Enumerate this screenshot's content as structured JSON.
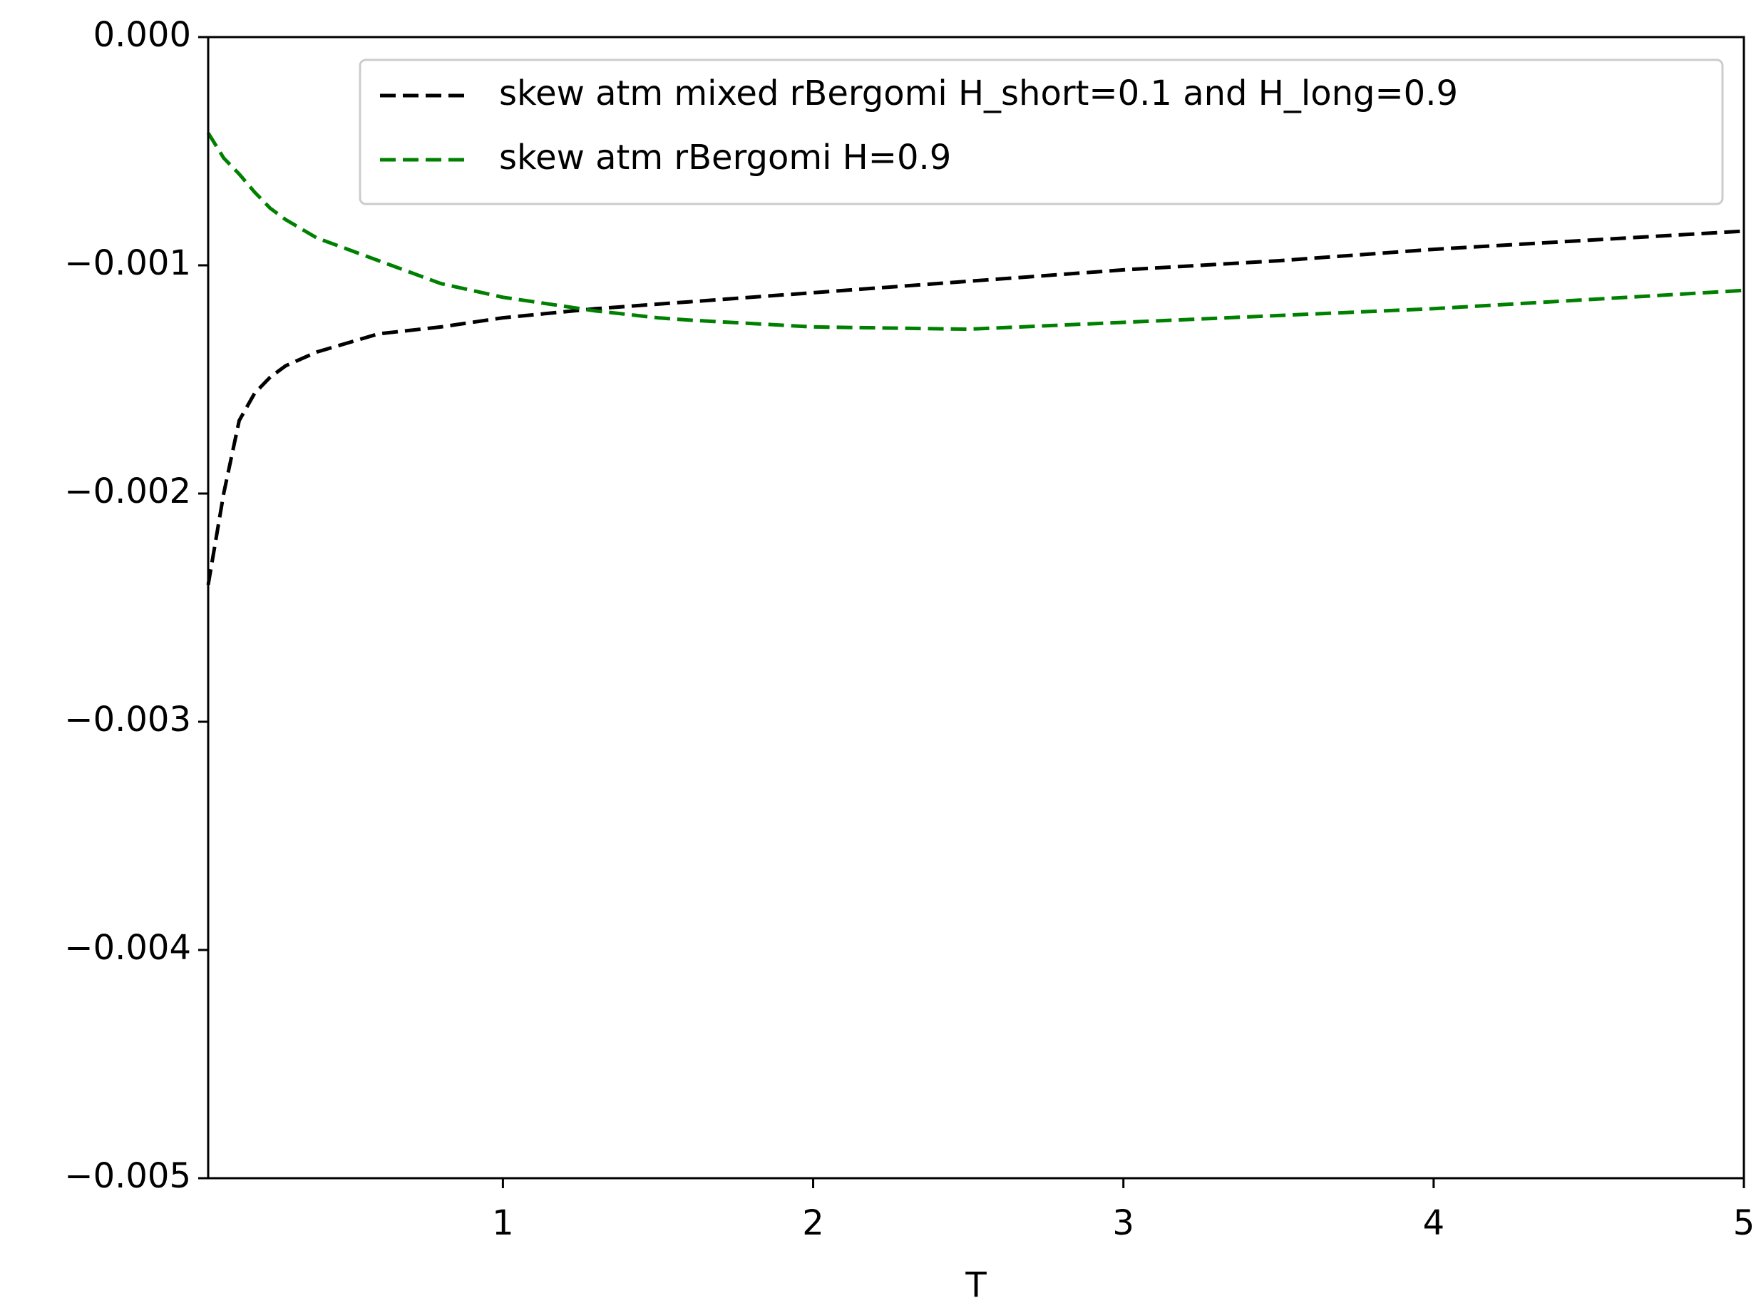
{
  "chart_data": {
    "type": "line",
    "x_label": "T",
    "x": [
      0.05,
      0.1,
      0.15,
      0.2,
      0.25,
      0.3,
      0.4,
      0.6,
      0.8,
      1.0,
      1.3,
      1.5,
      1.6,
      2.0,
      2.5,
      3.0,
      3.5,
      4.0,
      4.5,
      5.0
    ],
    "series": [
      {
        "name": "skew atm mixed rBergomi H_short=0.1 and H_long=0.9",
        "color": "#000000",
        "values": [
          -0.0024,
          -0.002,
          -0.00168,
          -0.00156,
          -0.00149,
          -0.00144,
          -0.00138,
          -0.0013,
          -0.00127,
          -0.00123,
          -0.00119,
          -0.00117,
          -0.00116,
          -0.00112,
          -0.00107,
          -0.00102,
          -0.00098,
          -0.00093,
          -0.00089,
          -0.00085
        ]
      },
      {
        "name": "skew atm rBergomi H=0.9",
        "color": "#008000",
        "values": [
          -0.00042,
          -0.00053,
          -0.0006,
          -0.00068,
          -0.00075,
          -0.0008,
          -0.00088,
          -0.00098,
          -0.00108,
          -0.00114,
          -0.0012,
          -0.00123,
          -0.00124,
          -0.00127,
          -0.00128,
          -0.00125,
          -0.00122,
          -0.00119,
          -0.00115,
          -0.00111
        ]
      }
    ],
    "xlim": [
      0.05,
      5
    ],
    "xticks": [
      1,
      2,
      3,
      4,
      5
    ],
    "ylim": [
      -0.005,
      0
    ],
    "yticks": [
      {
        "value": -0.005,
        "label": "−0.005"
      },
      {
        "value": -0.004,
        "label": "−0.004"
      },
      {
        "value": -0.003,
        "label": "−0.003"
      },
      {
        "value": -0.002,
        "label": "−0.002"
      },
      {
        "value": -0.001,
        "label": "−0.001"
      },
      {
        "value": 0,
        "label": "0.000"
      }
    ],
    "line_style": "dashed",
    "legend": "upper right",
    "grid": false
  }
}
